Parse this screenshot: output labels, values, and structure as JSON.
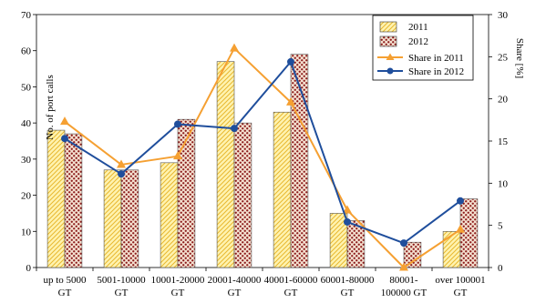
{
  "chart_data": {
    "type": "bar",
    "categories": [
      [
        "up to 5000",
        "GT"
      ],
      [
        "5001-10000",
        "GT"
      ],
      [
        "10001-20000",
        "GT"
      ],
      [
        "20001-40000",
        "GT"
      ],
      [
        "40001-60000",
        "GT"
      ],
      [
        "60001-80000",
        "GT"
      ],
      [
        "80001-",
        "100000 GT"
      ],
      [
        "over 100001",
        "GT"
      ]
    ],
    "series": [
      {
        "name": "2011",
        "type": "bar",
        "axis": "left",
        "values": [
          38,
          27,
          29,
          57,
          43,
          15,
          0,
          10
        ]
      },
      {
        "name": "2012",
        "type": "bar",
        "axis": "left",
        "values": [
          37,
          27,
          41,
          40,
          59,
          13,
          7,
          19
        ]
      },
      {
        "name": "Share in 2011",
        "type": "line",
        "axis": "right",
        "values": [
          17.3,
          12.2,
          13.2,
          26.0,
          19.6,
          6.8,
          0,
          4.5
        ]
      },
      {
        "name": "Share in 2012",
        "type": "line",
        "axis": "right",
        "values": [
          15.3,
          11.1,
          17.0,
          16.5,
          24.4,
          5.4,
          2.9,
          7.9
        ]
      }
    ],
    "ylabel": "No. of port calls",
    "y2label": "Share [%]",
    "ylim": [
      0,
      70
    ],
    "y2lim": [
      0,
      30
    ],
    "yticks": [
      0,
      10,
      20,
      30,
      40,
      50,
      60,
      70
    ],
    "y2ticks": [
      0,
      5,
      10,
      15,
      20,
      25,
      30
    ],
    "legend_position": "top-right",
    "colors": {
      "bar2011_fill": "#fff3b0",
      "bar2011_hatch": "#e8b830",
      "bar2012_fill": "#f4e0d0",
      "bar2012_dot": "#8b1a1a",
      "line2011": "#f5a032",
      "line2012": "#1f4e9c"
    }
  }
}
